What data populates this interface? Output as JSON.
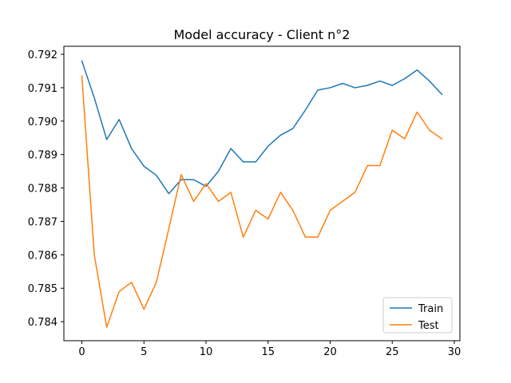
{
  "chart_data": {
    "type": "line",
    "title": "Model accuracy - Client n°2",
    "xlabel": "",
    "ylabel": "",
    "x": [
      0,
      1,
      2,
      3,
      4,
      5,
      6,
      7,
      8,
      9,
      10,
      11,
      12,
      13,
      14,
      15,
      16,
      17,
      18,
      19,
      20,
      21,
      22,
      23,
      24,
      25,
      26,
      27,
      28,
      29
    ],
    "xlim": [
      -1.45,
      30.45
    ],
    "ylim": [
      0.78343,
      0.79224
    ],
    "xticks": [
      0,
      5,
      10,
      15,
      20,
      25,
      30
    ],
    "yticks": [
      0.784,
      0.785,
      0.786,
      0.787,
      0.788,
      0.789,
      0.79,
      0.791,
      0.792
    ],
    "grid": false,
    "legend_position": "lower right",
    "series": [
      {
        "name": "Train",
        "color": "#1f77b4",
        "values": [
          0.7918,
          0.7907,
          0.78945,
          0.79005,
          0.78918,
          0.78865,
          0.78838,
          0.78783,
          0.78825,
          0.78825,
          0.78805,
          0.7885,
          0.78918,
          0.78878,
          0.78878,
          0.78925,
          0.78958,
          0.78978,
          0.79033,
          0.79093,
          0.791,
          0.79113,
          0.791,
          0.79107,
          0.7912,
          0.79107,
          0.79127,
          0.79153,
          0.7912,
          0.7908
        ]
      },
      {
        "name": "Test",
        "color": "#ff7f0e",
        "values": [
          0.79135,
          0.786,
          0.78383,
          0.7849,
          0.78518,
          0.78437,
          0.78518,
          0.78678,
          0.7884,
          0.7876,
          0.78813,
          0.7876,
          0.78787,
          0.78653,
          0.78733,
          0.78707,
          0.78787,
          0.78733,
          0.78653,
          0.78653,
          0.78733,
          0.7876,
          0.78787,
          0.78867,
          0.78867,
          0.78973,
          0.78947,
          0.79027,
          0.78973,
          0.78947
        ]
      }
    ]
  }
}
